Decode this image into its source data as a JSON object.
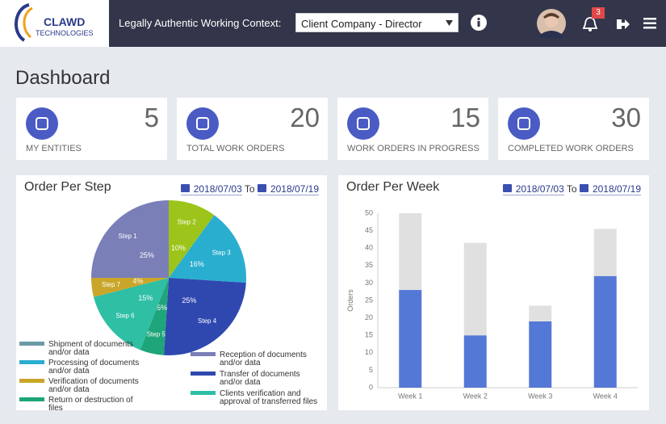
{
  "header": {
    "logo_top": "CLAWD",
    "logo_bottom": "TECHNOLOGIES",
    "context_label": "Legally Authentic Working Context:",
    "context_value": "Client Company - Director",
    "notifications": "3"
  },
  "page_title": "Dashboard",
  "cards": [
    {
      "value": "5",
      "label": "MY ENTITIES"
    },
    {
      "value": "20",
      "label": "TOTAL WORK ORDERS"
    },
    {
      "value": "15",
      "label": "WORK ORDERS IN PROGRESS"
    },
    {
      "value": "30",
      "label": "COMPLETED WORK ORDERS"
    }
  ],
  "chart_data": [
    {
      "type": "pie",
      "title": "Order Per Step",
      "date_from": "2018/07/03",
      "to_label": "To",
      "date_to": "2018/07/19",
      "categories": [
        "Step 2",
        "Step 3",
        "Step 4",
        "Step 5",
        "Step 6",
        "Step 7",
        "Step 1"
      ],
      "values": [
        10,
        16,
        25,
        5,
        15,
        4,
        25
      ],
      "value_labels": [
        "10%",
        "16%",
        "25%",
        "5%",
        "15%",
        "4%",
        "25%"
      ],
      "colors": [
        "#9dc41a",
        "#2aaed0",
        "#2f48b0",
        "#1fa57a",
        "#2ebfa5",
        "#c9a62a",
        "#7a7fb8"
      ],
      "legend": [
        {
          "label": "Shipment of documents and/or data",
          "color": "#6a9aa8"
        },
        {
          "label": "Processing of documents and/or data",
          "color": "#2aaed0"
        },
        {
          "label": "Verification of documents and/or data",
          "color": "#c9a62a"
        },
        {
          "label": "Return or destruction of files",
          "color": "#1fa57a"
        },
        {
          "label": "Reception of documents and/or data",
          "color": "#7a7fb8"
        },
        {
          "label": "Transfer of documents and/or data",
          "color": "#2f48b0"
        },
        {
          "label": "Clients verification and approval of transferred files",
          "color": "#2ebfa5"
        }
      ]
    },
    {
      "type": "stacked-bar",
      "title": "Order Per Week",
      "date_from": "2018/07/03",
      "to_label": "To",
      "date_to": "2018/07/19",
      "ylabel": "Orders",
      "categories": [
        "Week 1",
        "Week 2",
        "Week 3",
        "Week 4"
      ],
      "series": [
        {
          "color": "#5478d6",
          "values": [
            28,
            15,
            19,
            32
          ]
        },
        {
          "color": "#e0e0e0",
          "values": [
            22,
            26.5,
            4.5,
            13.5
          ]
        }
      ],
      "ylim": [
        0,
        50
      ],
      "yticks": [
        0,
        5,
        10,
        15,
        20,
        25,
        30,
        35,
        40,
        45,
        50
      ],
      "grid": false
    }
  ]
}
